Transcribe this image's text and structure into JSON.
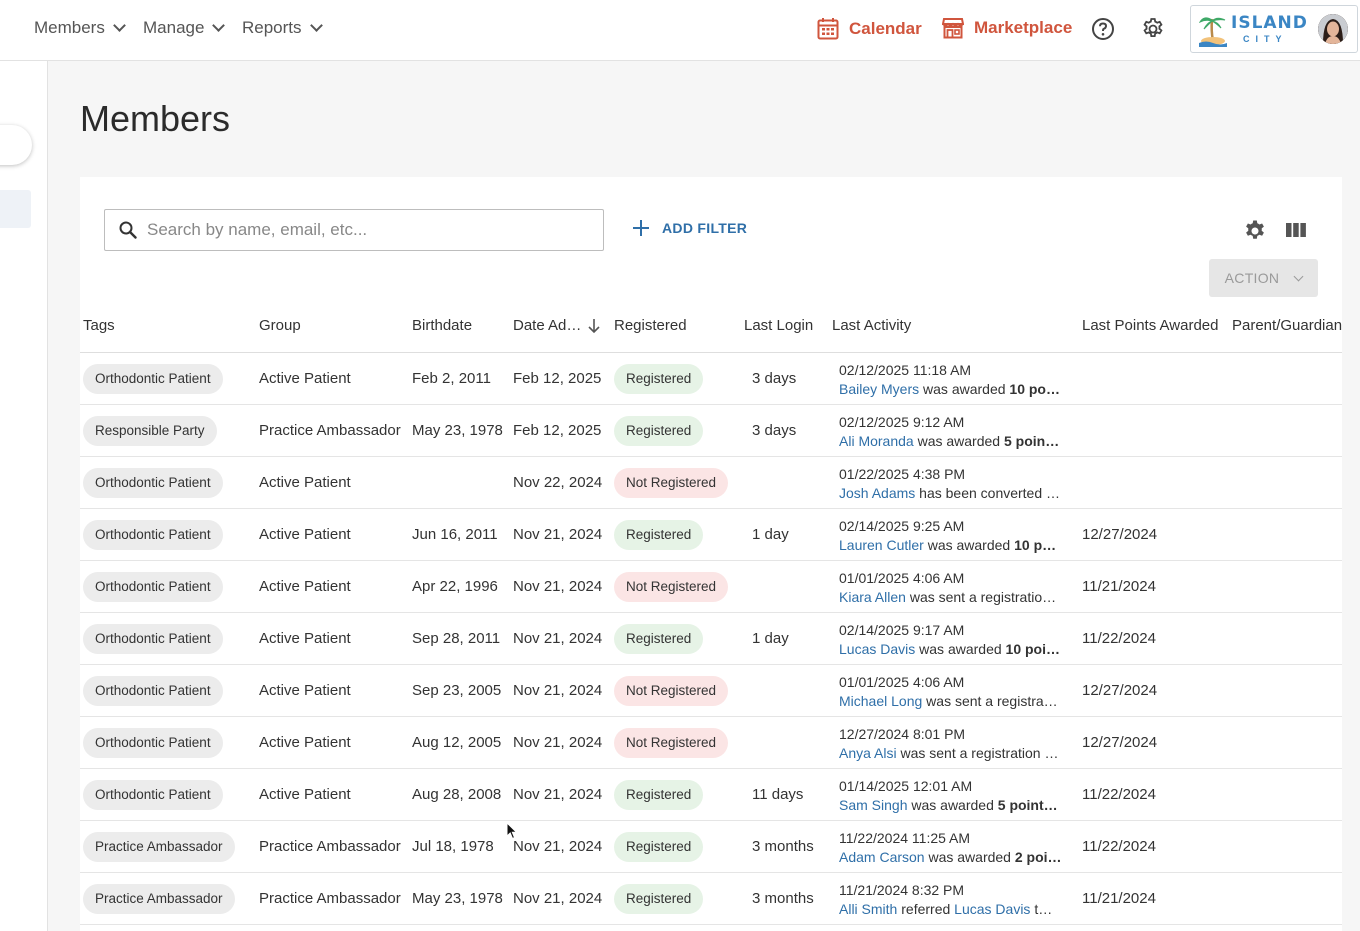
{
  "nav": {
    "members": "Members",
    "manage": "Manage",
    "reports": "Reports",
    "calendar": "Calendar",
    "marketplace": "Marketplace",
    "brand_name": "ISLAND",
    "brand_sub": "CITY"
  },
  "page": {
    "title": "Members"
  },
  "toolbar": {
    "search_placeholder": "Search by name, email, etc...",
    "add_filter": "ADD FILTER",
    "action": "ACTION"
  },
  "columns": {
    "tags": "Tags",
    "group": "Group",
    "birthdate": "Birthdate",
    "date_added": "Date Ad…",
    "registered": "Registered",
    "last_login": "Last Login",
    "last_activity": "Last Activity",
    "last_points": "Last Points Awarded",
    "parent": "Parent/Guardian"
  },
  "rows": [
    {
      "tag": "Orthodontic Patient",
      "group": "Active Patient",
      "birthdate": "Feb 2, 2011",
      "date_added": "Feb 12, 2025",
      "registered": "Registered",
      "login": "3 days",
      "time": "02/12/2025 11:18 AM",
      "who": "Bailey Myers",
      "action": " was awarded ",
      "bold": "10 po…",
      "points": ""
    },
    {
      "tag": "Responsible Party",
      "group": "Practice Ambassador",
      "birthdate": "May 23, 1978",
      "date_added": "Feb 12, 2025",
      "registered": "Registered",
      "login": "3 days",
      "time": "02/12/2025 9:12 AM",
      "who": "Ali Moranda",
      "action": " was awarded ",
      "bold": "5 poin…",
      "points": ""
    },
    {
      "tag": "Orthodontic Patient",
      "group": "Active Patient",
      "birthdate": "",
      "date_added": "Nov 22, 2024",
      "registered": "Not Registered",
      "login": "",
      "time": "01/22/2025 4:38 PM",
      "who": "Josh Adams",
      "action": " has been converted …",
      "bold": "",
      "points": ""
    },
    {
      "tag": "Orthodontic Patient",
      "group": "Active Patient",
      "birthdate": "Jun 16, 2011",
      "date_added": "Nov 21, 2024",
      "registered": "Registered",
      "login": "1 day",
      "time": "02/14/2025 9:25 AM",
      "who": "Lauren Cutler",
      "action": " was awarded ",
      "bold": "10 p…",
      "points": "12/27/2024"
    },
    {
      "tag": "Orthodontic Patient",
      "group": "Active Patient",
      "birthdate": "Apr 22, 1996",
      "date_added": "Nov 21, 2024",
      "registered": "Not Registered",
      "login": "",
      "time": "01/01/2025 4:06 AM",
      "who": "Kiara Allen",
      "action": " was sent a registratio…",
      "bold": "",
      "points": "11/21/2024"
    },
    {
      "tag": "Orthodontic Patient",
      "group": "Active Patient",
      "birthdate": "Sep 28, 2011",
      "date_added": "Nov 21, 2024",
      "registered": "Registered",
      "login": "1 day",
      "time": "02/14/2025 9:17 AM",
      "who": "Lucas Davis",
      "action": " was awarded ",
      "bold": "10 poi…",
      "points": "11/22/2024"
    },
    {
      "tag": "Orthodontic Patient",
      "group": "Active Patient",
      "birthdate": "Sep 23, 2005",
      "date_added": "Nov 21, 2024",
      "registered": "Not Registered",
      "login": "",
      "time": "01/01/2025 4:06 AM",
      "who": "Michael Long",
      "action": " was sent a registra…",
      "bold": "",
      "points": "12/27/2024"
    },
    {
      "tag": "Orthodontic Patient",
      "group": "Active Patient",
      "birthdate": "Aug 12, 2005",
      "date_added": "Nov 21, 2024",
      "registered": "Not Registered",
      "login": "",
      "time": "12/27/2024 8:01 PM",
      "who": "Anya Alsi",
      "action": " was sent a registration …",
      "bold": "",
      "points": "12/27/2024"
    },
    {
      "tag": "Orthodontic Patient",
      "group": "Active Patient",
      "birthdate": "Aug 28, 2008",
      "date_added": "Nov 21, 2024",
      "registered": "Registered",
      "login": "11 days",
      "time": "01/14/2025 12:01 AM",
      "who": "Sam Singh",
      "action": " was awarded ",
      "bold": "5 point…",
      "points": "11/22/2024"
    },
    {
      "tag": "Practice Ambassador",
      "group": "Practice Ambassador",
      "birthdate": "Jul 18, 1978",
      "date_added": "Nov 21, 2024",
      "registered": "Registered",
      "login": "3 months",
      "time": "11/22/2024 11:25 AM",
      "who": "Adam Carson",
      "action": " was awarded ",
      "bold": "2 poi…",
      "points": "11/22/2024"
    },
    {
      "tag": "Practice Ambassador",
      "group": "Practice Ambassador",
      "birthdate": "May 23, 1978",
      "date_added": "Nov 21, 2024",
      "registered": "Registered",
      "login": "3 months",
      "time": "11/21/2024 8:32 PM",
      "who": "Alli Smith",
      "action": " referred ",
      "bold": "",
      "who2": "Lucas Davis",
      "tail": " t…",
      "points": "11/21/2024"
    }
  ],
  "colors": {
    "accent": "#d0553d",
    "link": "#2f6fa8",
    "registered_bg": "#e6f3e6",
    "not_registered_bg": "#fbe5e5"
  },
  "icons": [
    "calendar-icon",
    "store-icon",
    "help-icon",
    "gear-icon",
    "search-icon",
    "plus-icon",
    "columns-icon",
    "sort-down-icon",
    "chevron-down-icon"
  ]
}
